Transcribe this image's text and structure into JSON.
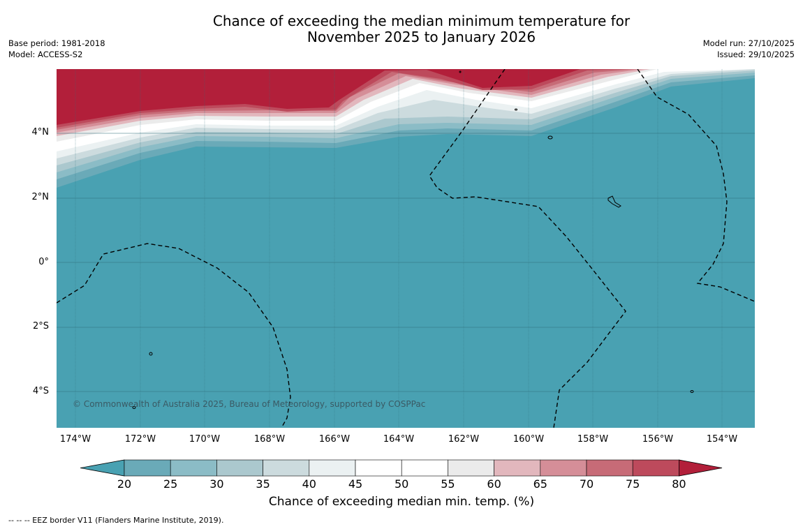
{
  "title_line1": "Chance of exceeding the median minimum temperature for",
  "title_line2": "November 2025 to January 2026",
  "base_period": "Base period: 1981-2018",
  "model": "Model: ACCESS-S2",
  "model_run": "Model run: 27/10/2025",
  "issued": "Issued: 29/10/2025",
  "copyright": "© Commonwealth of Australia 2025, Bureau of Meteorology, supported by COSPPac",
  "lat_labels": [
    "4°N",
    "2°N",
    "0°",
    "2°S",
    "4°S"
  ],
  "lon_labels": [
    "174°W",
    "172°W",
    "170°W",
    "168°W",
    "166°W",
    "164°W",
    "162°W",
    "160°W",
    "158°W",
    "156°W",
    "154°W"
  ],
  "colorbar": {
    "label": "Chance of exceeding median min. temp. (%)",
    "ticks": [
      "20",
      "25",
      "30",
      "35",
      "40",
      "45",
      "50",
      "55",
      "60",
      "65",
      "70",
      "75",
      "80"
    ],
    "colors": [
      "#6aaab8",
      "#8bbcc6",
      "#abc8ce",
      "#ccdbde",
      "#ebf1f2",
      "#ffffff",
      "#ffffff",
      "#ebebeb",
      "#e2b7bd",
      "#d58e98",
      "#c76b77",
      "#bd4a5c"
    ],
    "low_color": "#49a1b2",
    "high_color": "#b21f3a"
  },
  "map_colors": {
    "sea": "#49a1b2",
    "warm": "#b21f3a"
  },
  "footnote": "--  --  -- EEZ border V11 (Flanders Marine Institute, 2019)."
}
